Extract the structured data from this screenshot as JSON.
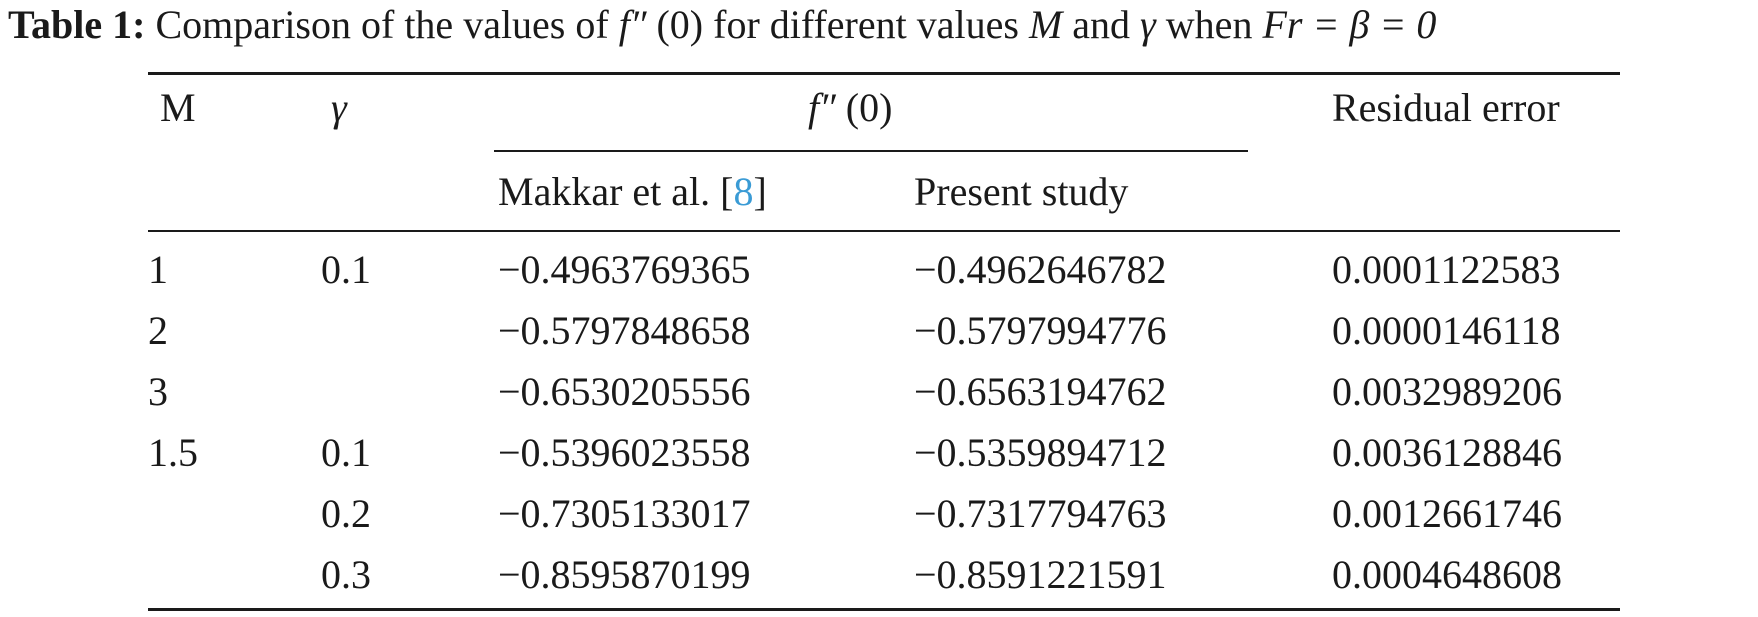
{
  "caption": {
    "label": "Table 1:",
    "text_before": "Comparison of the values of",
    "fpp_symbol": "f″",
    "fpp_arg": "(0)",
    "text_middle": "for different values",
    "var_M": "M",
    "and": "and",
    "var_gamma": "γ",
    "when": "when",
    "condition": "Fr = β = 0"
  },
  "headers": {
    "M": "M",
    "gamma": "γ",
    "fpp_symbol": "f″",
    "fpp_arg": "(0)",
    "makkar_prefix": "Makkar et al. [",
    "makkar_ref": "8",
    "makkar_suffix": "]",
    "present": "Present study",
    "residual": "Residual error"
  },
  "rows": [
    {
      "M": "1",
      "gamma": "0.1",
      "makkar": "−0.4963769365",
      "present": "−0.4962646782",
      "residual": "0.0001122583"
    },
    {
      "M": "2",
      "gamma": "",
      "makkar": "−0.5797848658",
      "present": "−0.5797994776",
      "residual": "0.0000146118"
    },
    {
      "M": "3",
      "gamma": "",
      "makkar": "−0.6530205556",
      "present": "−0.6563194762",
      "residual": "0.0032989206"
    },
    {
      "M": "1.5",
      "gamma": "0.1",
      "makkar": "−0.5396023558",
      "present": "−0.5359894712",
      "residual": "0.0036128846"
    },
    {
      "M": "",
      "gamma": "0.2",
      "makkar": "−0.7305133017",
      "present": "−0.7317794763",
      "residual": "0.0012661746"
    },
    {
      "M": "",
      "gamma": "0.3",
      "makkar": "−0.8595870199",
      "present": "−0.8591221591",
      "residual": "0.0004648608"
    }
  ]
}
